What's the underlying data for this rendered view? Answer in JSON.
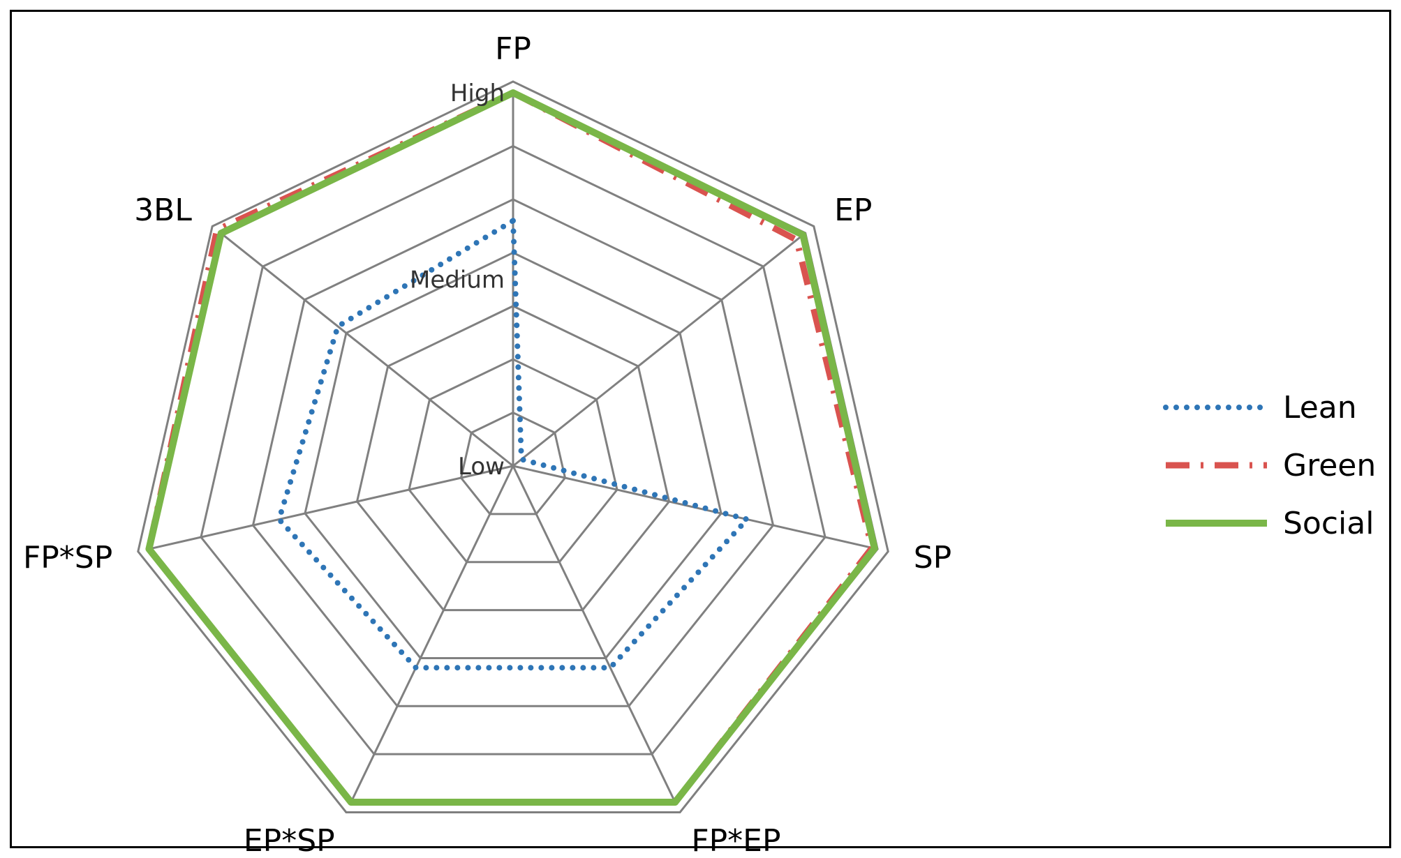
{
  "chart_data": {
    "type": "radar",
    "title": "",
    "axes": [
      "FP",
      "EP",
      "SP",
      "FP*EP",
      "EP*SP",
      "FP*SP",
      "3BL"
    ],
    "scale": {
      "min": 0,
      "max": 7,
      "rings": 7,
      "tick_labels": [
        {
          "value": 0,
          "label": "Low"
        },
        {
          "value": 3.5,
          "label": "Medium"
        },
        {
          "value": 7,
          "label": "High"
        }
      ]
    },
    "series": [
      {
        "name": "Lean",
        "style": "dotted",
        "color": "#2E75B6",
        "values": [
          4.6,
          0.2,
          4.5,
          4.2,
          4.2,
          4.5,
          4.2
        ]
      },
      {
        "name": "Green",
        "style": "dash-dot",
        "color": "#D9534F",
        "values": [
          7.0,
          6.8,
          6.9,
          7.0,
          7.0,
          7.0,
          7.1
        ]
      },
      {
        "name": "Social",
        "style": "solid",
        "color": "#7AB648",
        "values": [
          7.0,
          6.95,
          6.95,
          7.0,
          7.0,
          7.0,
          7.0
        ]
      }
    ],
    "grid": true,
    "legend_position": "right"
  }
}
